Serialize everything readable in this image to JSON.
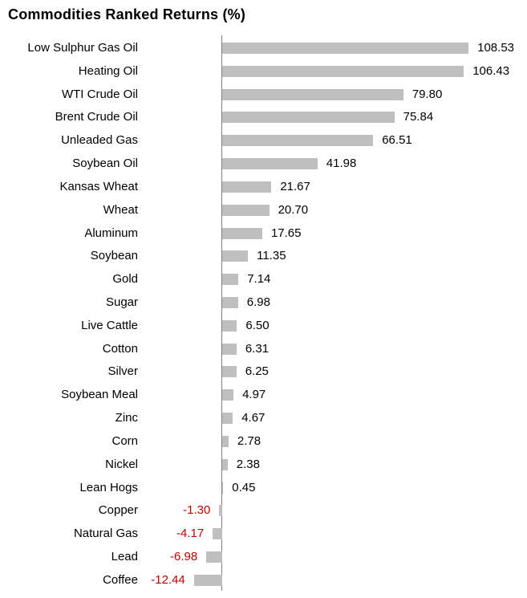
{
  "title": "Commodities Ranked Returns (%)",
  "colors": {
    "background": "#FFFFFF",
    "bar": "#BFBFBF",
    "axis": "#808080",
    "text": "#000000",
    "negative_text": "#C00000"
  },
  "chart_data": {
    "type": "bar",
    "orientation": "horizontal",
    "title": "Commodities Ranked Returns (%)",
    "xlabel": "",
    "ylabel": "",
    "grid": false,
    "legend": "none",
    "xlim": [
      -15,
      120
    ],
    "value_label_position": "bar-end",
    "negative_labels_in_red": true,
    "categories": [
      "Low Sulphur Gas Oil",
      "Heating Oil",
      "WTI Crude Oil",
      "Brent Crude Oil",
      "Unleaded Gas",
      "Soybean Oil",
      "Kansas Wheat",
      "Wheat",
      "Aluminum",
      "Soybean",
      "Gold",
      "Sugar",
      "Live Cattle",
      "Cotton",
      "Silver",
      "Soybean Meal",
      "Zinc",
      "Corn",
      "Nickel",
      "Lean Hogs",
      "Copper",
      "Natural Gas",
      "Lead",
      "Coffee"
    ],
    "values": [
      108.53,
      106.43,
      79.8,
      75.84,
      66.51,
      41.98,
      21.67,
      20.7,
      17.65,
      11.35,
      7.14,
      6.98,
      6.5,
      6.31,
      6.25,
      4.97,
      4.67,
      2.78,
      2.38,
      0.45,
      -1.3,
      -4.17,
      -6.98,
      -12.44
    ],
    "value_labels": [
      "108.53",
      "106.43",
      "79.80",
      "75.84",
      "66.51",
      "41.98",
      "21.67",
      "20.70",
      "17.65",
      "11.35",
      "7.14",
      "6.98",
      "6.50",
      "6.31",
      "6.25",
      "4.97",
      "4.67",
      "2.78",
      "2.38",
      "0.45",
      "-1.30",
      "-4.17",
      "-6.98",
      "-12.44"
    ]
  }
}
